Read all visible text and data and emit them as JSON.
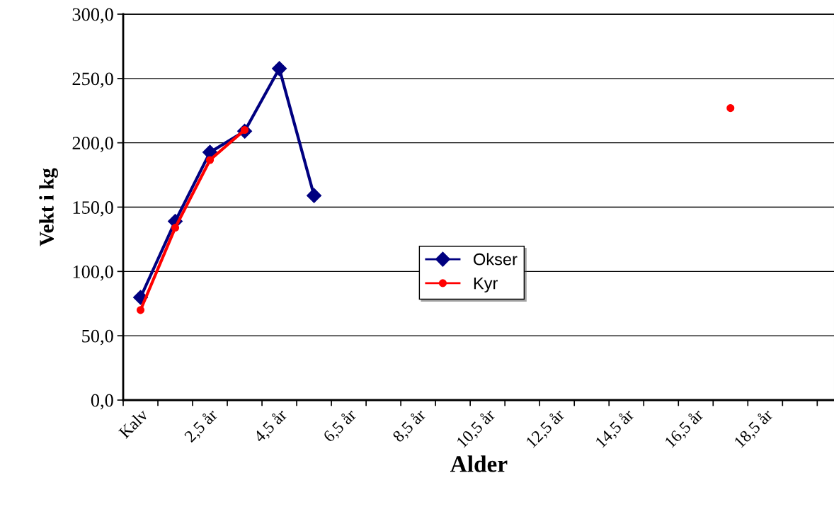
{
  "chart_data": {
    "type": "line",
    "xlabel": "Alder",
    "ylabel": "Vekt i kg",
    "categories": [
      "Kalv",
      null,
      "2,5 år",
      null,
      "4,5 år",
      null,
      "6,5 år",
      null,
      "8,5 år",
      null,
      "10,5 år",
      null,
      "12,5 år",
      null,
      "14,5 år",
      null,
      "16,5 år",
      null,
      "18,5 år",
      null
    ],
    "series": [
      {
        "name": "Okser",
        "color": "#000080",
        "marker": "diamond",
        "values": [
          79.8,
          139,
          192.6,
          209,
          257.7,
          159,
          null,
          null,
          null,
          null,
          null,
          null,
          null,
          null,
          null,
          null,
          null,
          null,
          null,
          null
        ]
      },
      {
        "name": "Kyr",
        "color": "#ff0000",
        "marker": "circle",
        "values": [
          70,
          134,
          186.6,
          210,
          null,
          null,
          null,
          null,
          null,
          null,
          null,
          null,
          null,
          null,
          null,
          null,
          null,
          227,
          null,
          null
        ]
      }
    ],
    "ylim": [
      0,
      300
    ],
    "yticks": [
      {
        "value": 0,
        "label": "0,0"
      },
      {
        "value": 50,
        "label": "50,0"
      },
      {
        "value": 100,
        "label": "100,0"
      },
      {
        "value": 150,
        "label": "150,0"
      },
      {
        "value": 200,
        "label": "200,0"
      },
      {
        "value": 250,
        "label": "250,0"
      },
      {
        "value": 300,
        "label": "300,0"
      }
    ],
    "grid": "y",
    "legend": "center",
    "line_style": "solid"
  }
}
